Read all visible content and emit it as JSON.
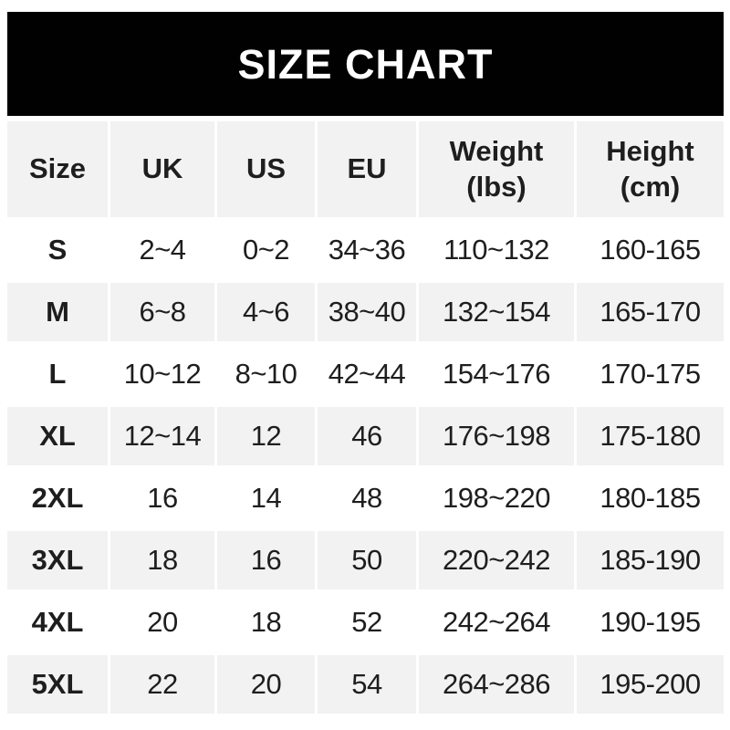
{
  "title": "SIZE CHART",
  "colors": {
    "banner_bg": "#010101",
    "banner_text": "#ffffff",
    "row_alt_bg": "#f2f2f2",
    "row_bg": "#ffffff",
    "text": "#1e1e1e"
  },
  "chart_data": {
    "type": "table",
    "title": "SIZE CHART",
    "layout": {
      "header_bg": "#f2f2f2",
      "alternating_rows": true,
      "gutter_color": "#ffffff"
    },
    "columns": [
      {
        "label": "Size",
        "sublabel": ""
      },
      {
        "label": "UK",
        "sublabel": ""
      },
      {
        "label": "US",
        "sublabel": ""
      },
      {
        "label": "EU",
        "sublabel": ""
      },
      {
        "label": "Weight",
        "sublabel": "(lbs)"
      },
      {
        "label": "Height",
        "sublabel": "(cm)"
      }
    ],
    "rows": [
      {
        "size": "S",
        "values": [
          "2~4",
          "0~2",
          "34~36",
          "110~132",
          "160-165"
        ]
      },
      {
        "size": "M",
        "values": [
          "6~8",
          "4~6",
          "38~40",
          "132~154",
          "165-170"
        ]
      },
      {
        "size": "L",
        "values": [
          "10~12",
          "8~10",
          "42~44",
          "154~176",
          "170-175"
        ]
      },
      {
        "size": "XL",
        "values": [
          "12~14",
          "12",
          "46",
          "176~198",
          "175-180"
        ]
      },
      {
        "size": "2XL",
        "values": [
          "16",
          "14",
          "48",
          "198~220",
          "180-185"
        ]
      },
      {
        "size": "3XL",
        "values": [
          "18",
          "16",
          "50",
          "220~242",
          "185-190"
        ]
      },
      {
        "size": "4XL",
        "values": [
          "20",
          "18",
          "52",
          "242~264",
          "190-195"
        ]
      },
      {
        "size": "5XL",
        "values": [
          "22",
          "20",
          "54",
          "264~286",
          "195-200"
        ]
      }
    ]
  }
}
